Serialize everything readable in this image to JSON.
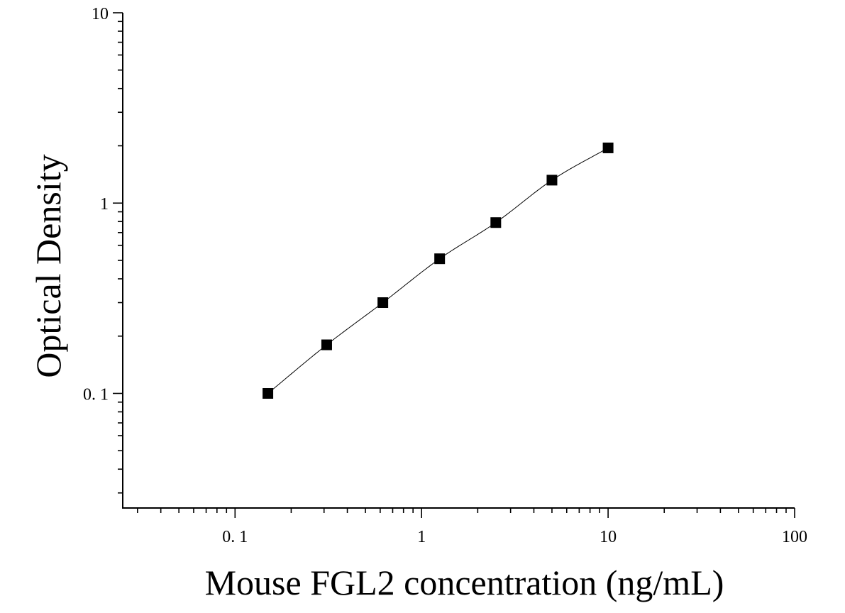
{
  "chart_data": {
    "type": "scatter",
    "xlabel": "Mouse FGL2 concentration (ng/mL)",
    "ylabel": "Optical Density",
    "xscale": "log",
    "yscale": "log",
    "xlim": [
      0.025,
      100
    ],
    "ylim": [
      0.025,
      10
    ],
    "x_ticks": [
      {
        "value": 0.1,
        "label": "0. 1"
      },
      {
        "value": 1,
        "label": "1"
      },
      {
        "value": 10,
        "label": "10"
      },
      {
        "value": 100,
        "label": "100"
      }
    ],
    "y_ticks": [
      {
        "value": 0.1,
        "label": "0. 1"
      },
      {
        "value": 1,
        "label": "1"
      },
      {
        "value": 10,
        "label": "10"
      }
    ],
    "grid": false,
    "series": [
      {
        "marker": "square",
        "color": "#000000",
        "x": [
          0.15,
          0.31,
          0.62,
          1.25,
          2.5,
          5,
          10
        ],
        "y": [
          0.1,
          0.18,
          0.3,
          0.51,
          0.79,
          1.32,
          1.95
        ],
        "fit_line": true
      }
    ]
  }
}
